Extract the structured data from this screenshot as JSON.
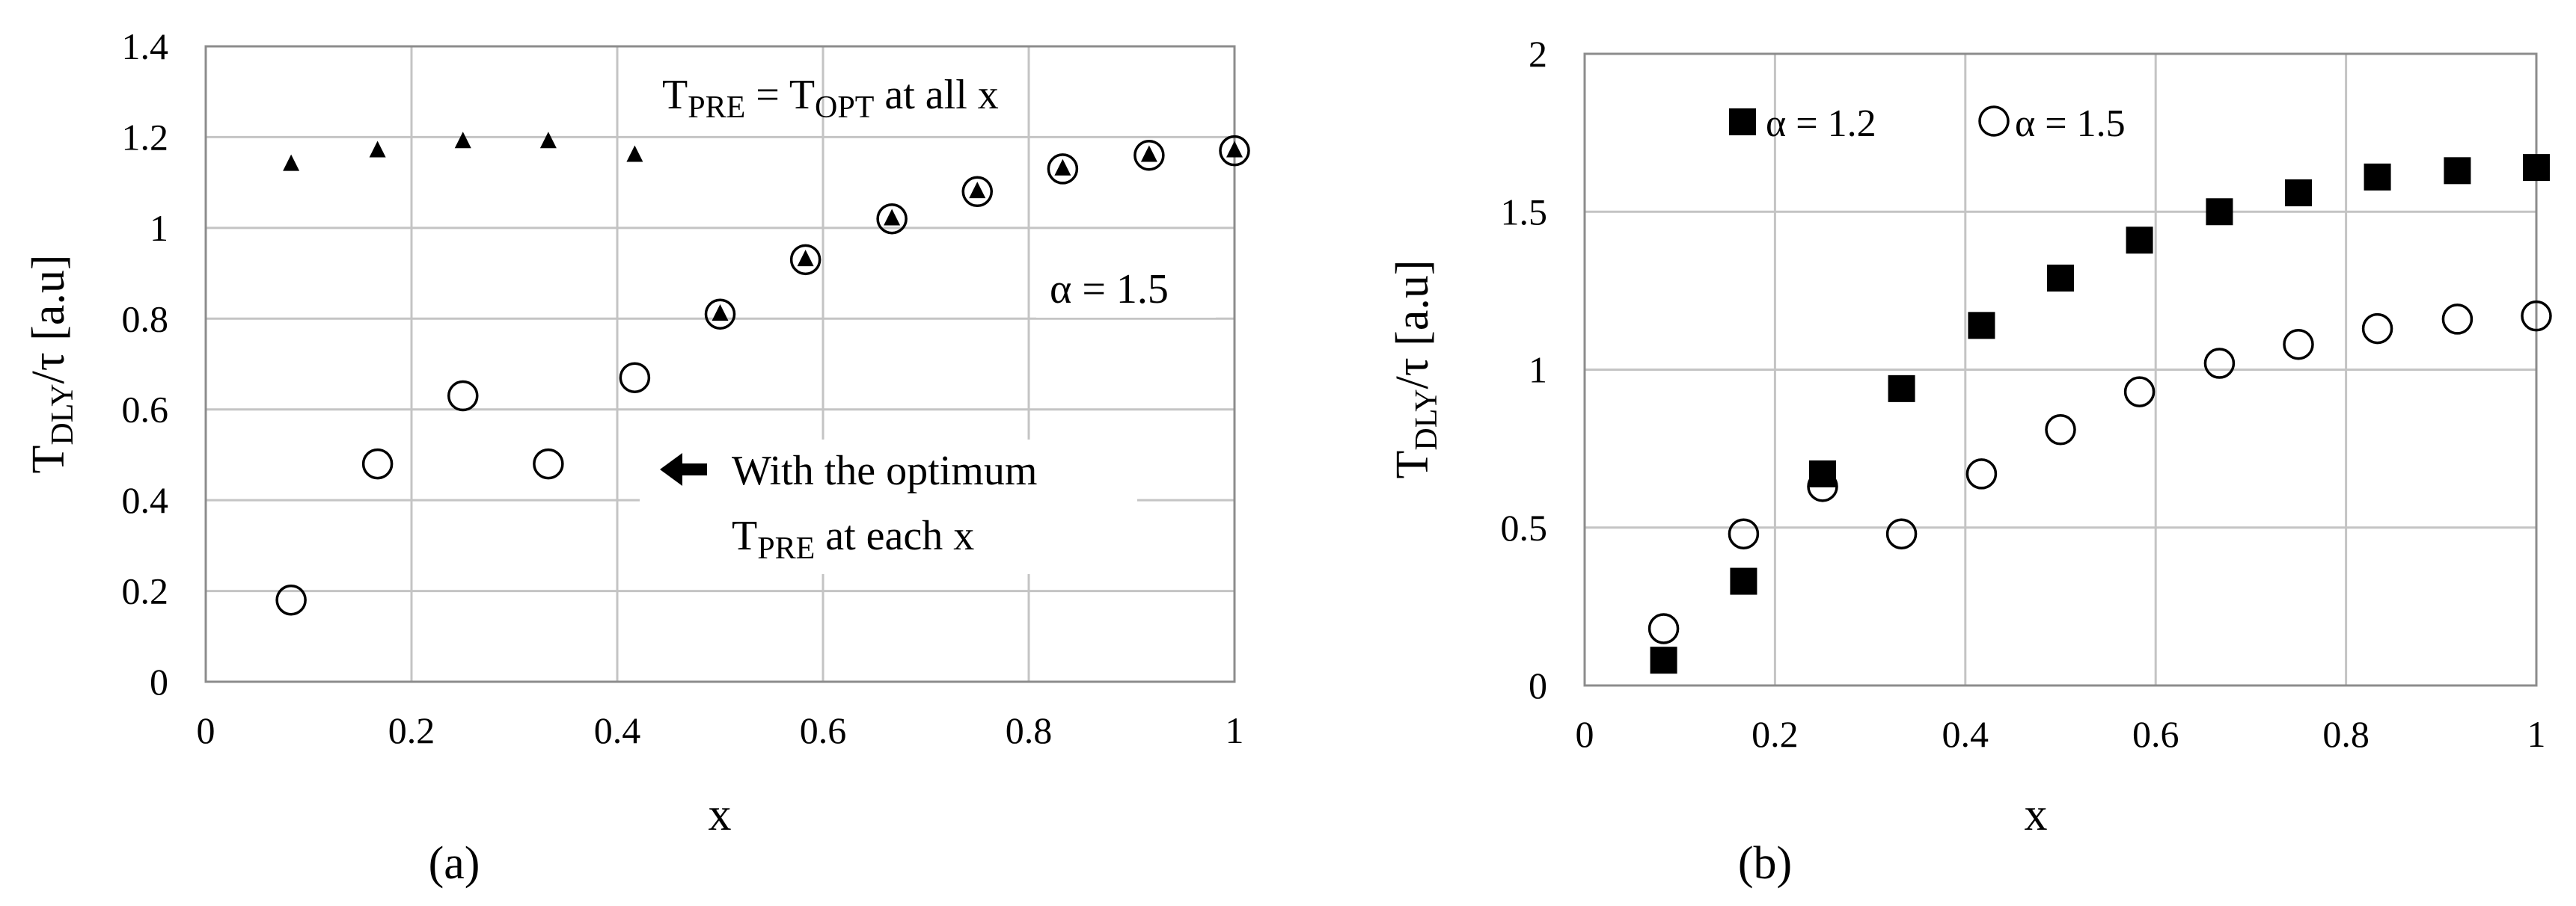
{
  "chart_data": [
    {
      "type": "scatter",
      "panel_label": "(a)",
      "xlabel": "x",
      "ylabel": {
        "main": "T",
        "sub": "DLY",
        "rest": "/τ [a.u]"
      },
      "xlim": [
        0,
        1
      ],
      "ylim": [
        0,
        1.4
      ],
      "xticks": [
        "0",
        "0.2",
        "0.4",
        "0.6",
        "0.8",
        "1"
      ],
      "yticks": [
        "0",
        "0.2",
        "0.4",
        "0.6",
        "0.8",
        "1",
        "1.2",
        "1.4"
      ],
      "grid": true,
      "annotations": {
        "top": {
          "t1": "T",
          "s1": "PRE",
          "mid": " = T",
          "s2": "OPT",
          "end": " at all x"
        },
        "alpha": "α = 1.5",
        "arrow_line1": "With the optimum",
        "arrow_line2": {
          "t": "T",
          "sub": "PRE",
          "end": " at each x"
        }
      },
      "series": [
        {
          "marker": "triangle",
          "x": [
            0.083,
            0.167,
            0.25,
            0.333,
            0.417,
            0.5,
            0.583,
            0.667,
            0.75,
            0.833,
            0.917,
            1.0
          ],
          "y": [
            1.14,
            1.17,
            1.19,
            1.19,
            1.16,
            0.81,
            0.93,
            1.02,
            1.08,
            1.13,
            1.16,
            1.17
          ]
        },
        {
          "marker": "open-circle",
          "x": [
            0.083,
            0.167,
            0.25,
            0.333,
            0.417,
            0.5,
            0.583,
            0.667,
            0.75,
            0.833,
            0.917,
            1.0
          ],
          "y": [
            0.18,
            0.48,
            0.63,
            0.48,
            0.67,
            0.81,
            0.93,
            1.02,
            1.08,
            1.13,
            1.16,
            1.17
          ]
        }
      ]
    },
    {
      "type": "scatter",
      "panel_label": "(b)",
      "xlabel": "x",
      "ylabel": {
        "main": "T",
        "sub": "DLY",
        "rest": "/τ [a.u]"
      },
      "xlim": [
        0,
        1
      ],
      "ylim": [
        0,
        2
      ],
      "xticks": [
        "0",
        "0.2",
        "0.4",
        "0.6",
        "0.8",
        "1"
      ],
      "yticks": [
        "0",
        "0.5",
        "1",
        "1.5",
        "2"
      ],
      "grid": true,
      "legend_position": "top-left",
      "series": [
        {
          "name": "α = 1.2",
          "marker": "filled-square",
          "x": [
            0.083,
            0.167,
            0.25,
            0.333,
            0.417,
            0.5,
            0.583,
            0.667,
            0.75,
            0.833,
            0.917,
            1.0
          ],
          "y": [
            0.08,
            0.33,
            0.67,
            0.94,
            1.14,
            1.29,
            1.41,
            1.5,
            1.56,
            1.61,
            1.63,
            1.64
          ]
        },
        {
          "name": "α = 1.5",
          "marker": "open-circle",
          "x": [
            0.083,
            0.167,
            0.25,
            0.333,
            0.417,
            0.5,
            0.583,
            0.667,
            0.75,
            0.833,
            0.917,
            1.0
          ],
          "y": [
            0.18,
            0.48,
            0.63,
            0.48,
            0.67,
            0.81,
            0.93,
            1.02,
            1.08,
            1.13,
            1.16,
            1.17
          ]
        }
      ]
    }
  ]
}
